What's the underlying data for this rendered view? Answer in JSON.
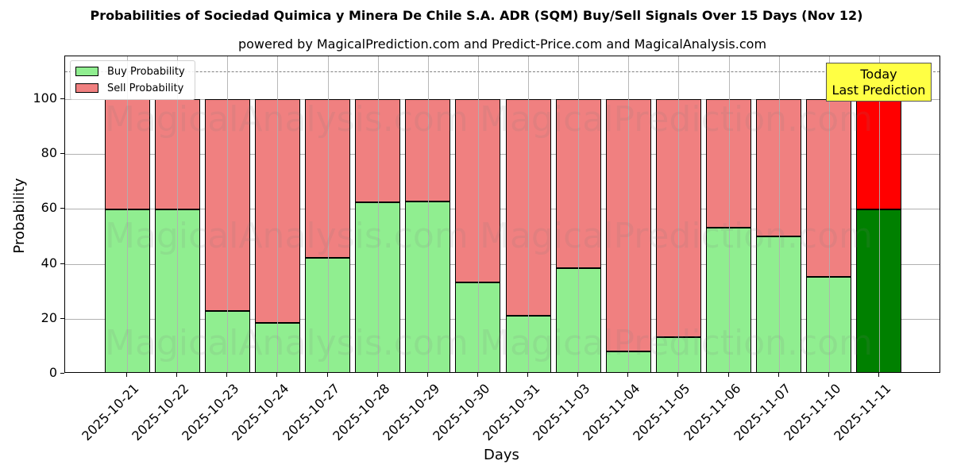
{
  "title": "Probabilities of Sociedad Quimica y Minera De Chile S.A. ADR (SQM) Buy/Sell Signals Over 15 Days (Nov 12)",
  "subtitle": "powered by MagicalPrediction.com and Predict-Price.com and MagicalAnalysis.com",
  "xlabel": "Days",
  "ylabel": "Probability",
  "legend": {
    "buy": "Buy Probability",
    "sell": "Sell Probability"
  },
  "annotation": {
    "line1": "Today",
    "line2": "Last Prediction"
  },
  "watermarks": [
    "MagicalAnalysis.com",
    "MagicalPrediction.com"
  ],
  "colors": {
    "buy": "#90ee90",
    "sell": "#f08080",
    "today_buy": "#008000",
    "today_sell": "#ff0000",
    "annotation_bg": "#ffff44"
  },
  "yticks": [
    "0",
    "20",
    "40",
    "60",
    "80",
    "100"
  ],
  "chart_data": {
    "type": "bar",
    "stacked": true,
    "title": "Probabilities of Sociedad Quimica y Minera De Chile S.A. ADR (SQM) Buy/Sell Signals Over 15 Days (Nov 12)",
    "subtitle": "powered by MagicalPrediction.com and Predict-Price.com and MagicalAnalysis.com",
    "xlabel": "Days",
    "ylabel": "Probability",
    "ylim": [
      0,
      115
    ],
    "grid": true,
    "legend_position": "upper left",
    "reference_line": {
      "y": 110,
      "style": "dashed",
      "color": "#808080"
    },
    "categories": [
      "2025-10-21",
      "2025-10-22",
      "2025-10-23",
      "2025-10-24",
      "2025-10-27",
      "2025-10-28",
      "2025-10-29",
      "2025-10-30",
      "2025-10-31",
      "2025-11-03",
      "2025-11-04",
      "2025-11-05",
      "2025-11-06",
      "2025-11-07",
      "2025-11-10",
      "2025-11-11"
    ],
    "series": [
      {
        "name": "Buy Probability",
        "values": [
          59.7,
          59.7,
          22.7,
          18.6,
          42.3,
          62.3,
          62.6,
          33.2,
          21.2,
          38.3,
          8.1,
          13.3,
          53.3,
          49.9,
          35.4,
          59.7
        ]
      },
      {
        "name": "Sell Probability",
        "values": [
          40.3,
          40.3,
          77.3,
          81.4,
          57.7,
          37.7,
          37.4,
          66.8,
          78.8,
          61.7,
          91.9,
          86.7,
          46.7,
          50.1,
          64.6,
          40.3
        ]
      }
    ],
    "annotations": [
      {
        "text": "Today\nLast Prediction",
        "category": "2025-11-11"
      }
    ]
  }
}
